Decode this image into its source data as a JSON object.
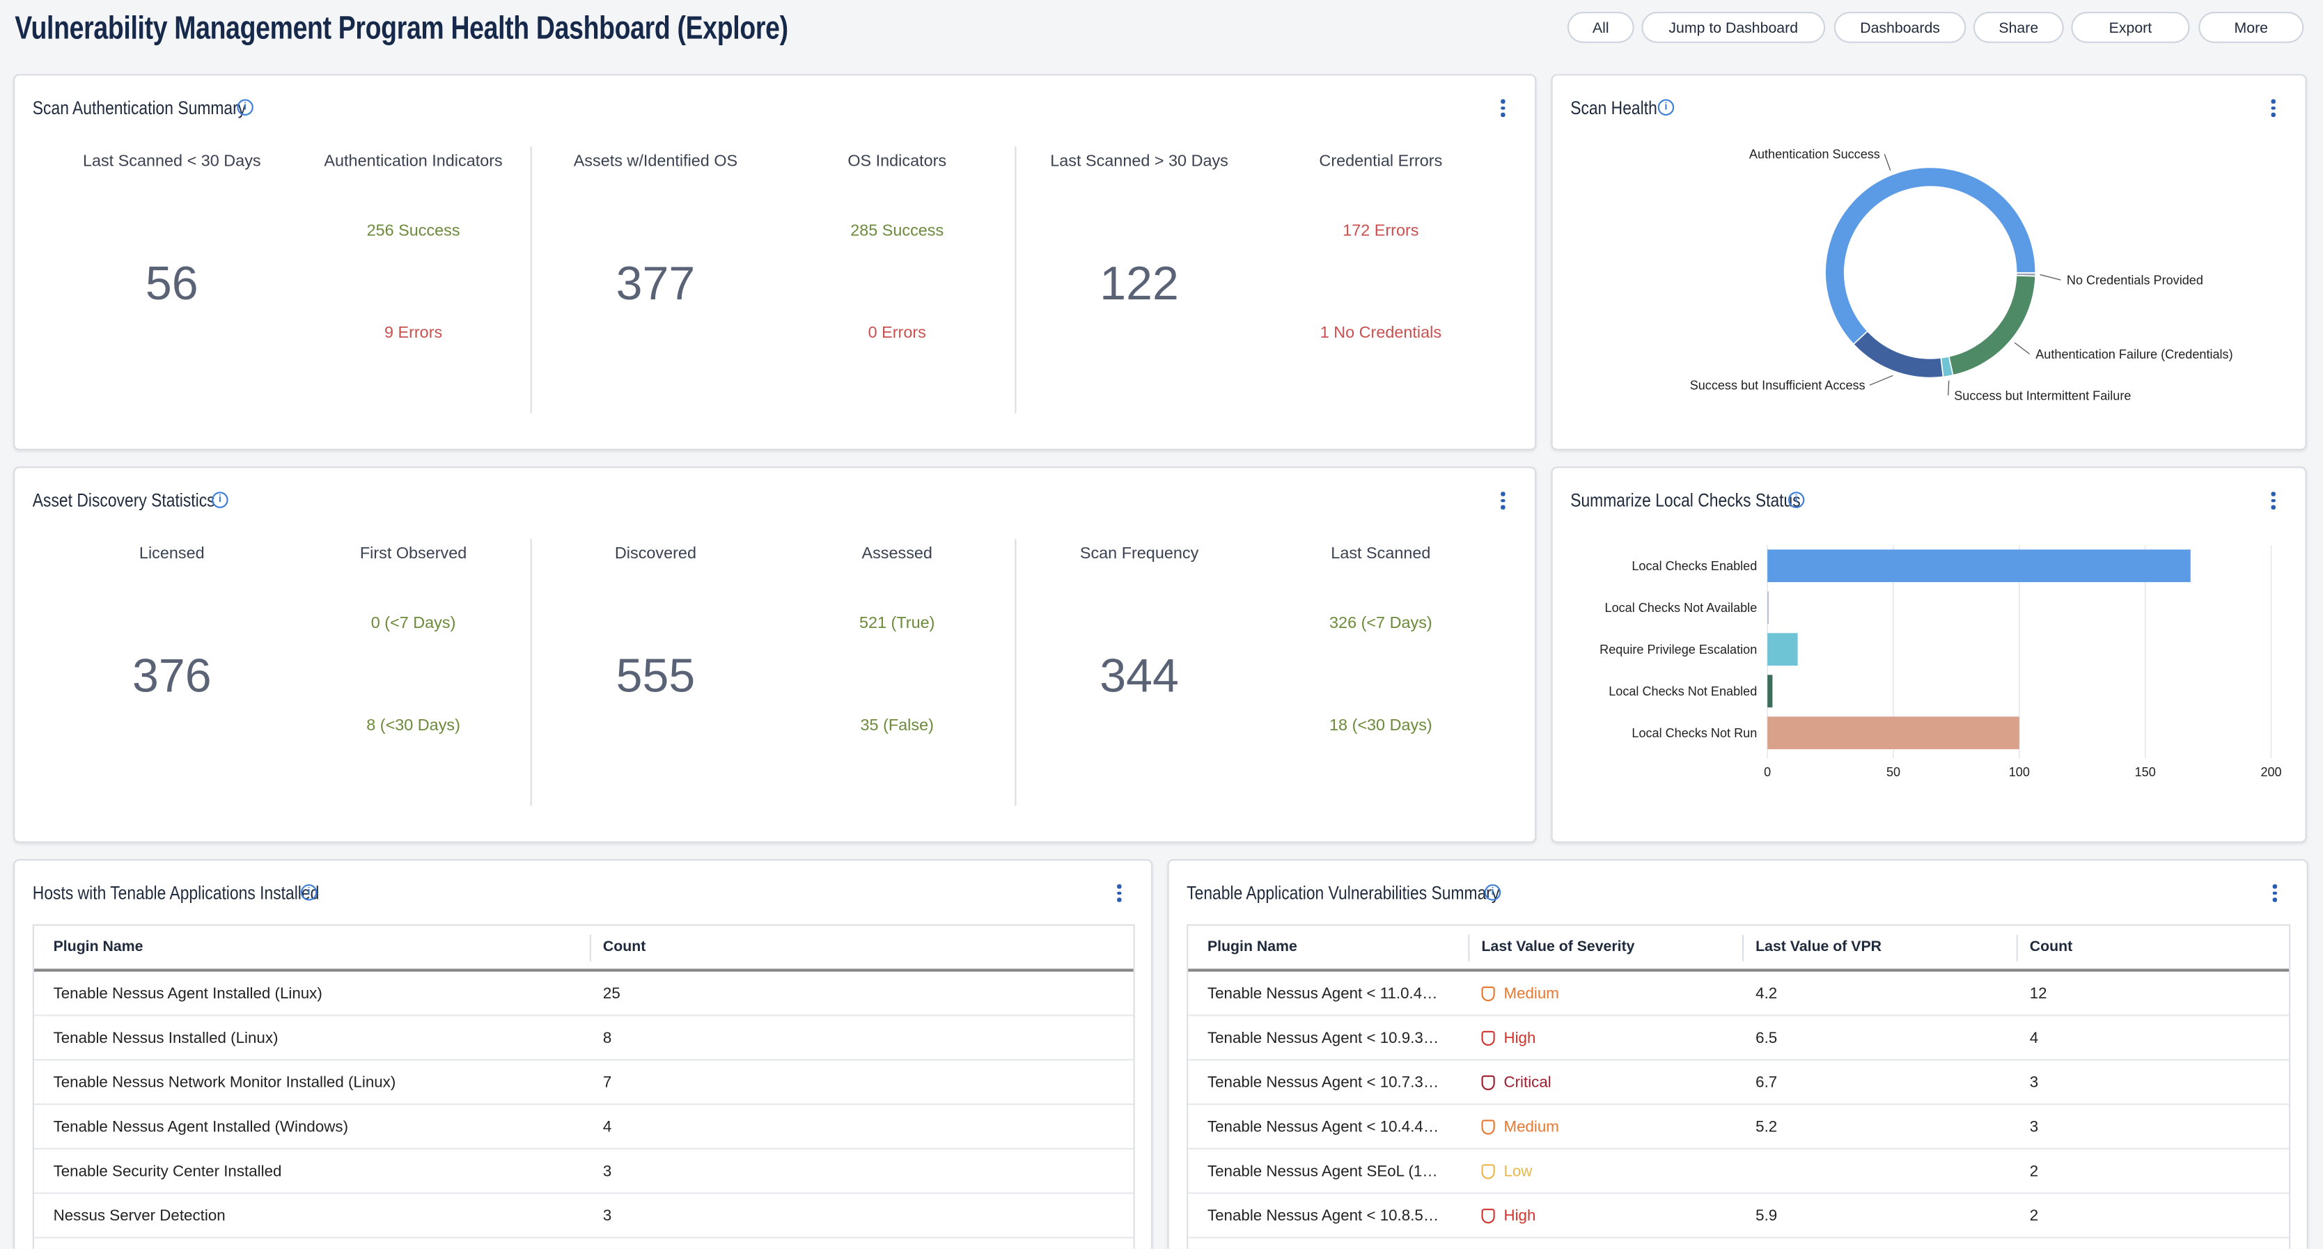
{
  "header": {
    "title": "Vulnerability Management Program Health Dashboard (Explore)",
    "buttons": [
      "All",
      "Jump to Dashboard",
      "Dashboards",
      "Share",
      "Export",
      "More"
    ]
  },
  "stat_panels": [
    {
      "title": "Scan Authentication Summary",
      "groups": [
        {
          "label": "Last Scanned < 30 Days",
          "value": "56",
          "detail_label": "Authentication Indicators",
          "top": "256 Success",
          "top_color": "#6b8a3a",
          "bottom": "9 Errors",
          "bottom_color": "#c9504f"
        },
        {
          "label": "Assets w/Identified OS",
          "value": "377",
          "detail_label": "OS Indicators",
          "top": "285 Success",
          "top_color": "#6b8a3a",
          "bottom": "0 Errors",
          "bottom_color": "#c9504f"
        },
        {
          "label": "Last Scanned > 30 Days",
          "value": "122",
          "detail_label": "Credential Errors",
          "top": "172 Errors",
          "top_color": "#c9504f",
          "bottom": "1 No Credentials",
          "bottom_color": "#c9504f"
        }
      ]
    },
    {
      "title": "Asset Discovery Statistics",
      "groups": [
        {
          "label": "Licensed",
          "value": "376",
          "detail_label": "First Observed",
          "top": "0 (<7 Days)",
          "top_color": "#6b8a3a",
          "bottom": "8 (<30 Days)",
          "bottom_color": "#6b8a3a"
        },
        {
          "label": "Discovered",
          "value": "555",
          "detail_label": "Assessed",
          "top": "521 (True)",
          "top_color": "#6b8a3a",
          "bottom": "35 (False)",
          "bottom_color": "#6b8a3a"
        },
        {
          "label": "Scan Frequency",
          "value": "344",
          "detail_label": "Last Scanned",
          "top": "326 (<7 Days)",
          "top_color": "#6b8a3a",
          "bottom": "18 (<30 Days)",
          "bottom_color": "#6b8a3a"
        }
      ]
    }
  ],
  "chart_data": [
    {
      "type": "pie",
      "title": "Scan Health",
      "donut": true,
      "categories": [
        "Authentication Success",
        "No Credentials Provided",
        "Authentication Failure (Credentials)",
        "Success but Intermittent Failure",
        "Success but Insufficient Access"
      ],
      "values": [
        62,
        0.5,
        21,
        1.5,
        15
      ],
      "colors": [
        "#5b9be6",
        "#9aa3b5",
        "#4f8a66",
        "#6ec3d4",
        "#3f629e"
      ]
    },
    {
      "type": "bar",
      "orientation": "horizontal",
      "title": "Summarize Local Checks Status",
      "categories": [
        "Local Checks Enabled",
        "Local Checks Not Available",
        "Require Privilege Escalation",
        "Local Checks Not Enabled",
        "Local Checks Not Run"
      ],
      "values": [
        168,
        0.5,
        12,
        2,
        100
      ],
      "colors": [
        "#5b9be6",
        "#b5bfd6",
        "#6ec3d4",
        "#3e6e5a",
        "#d9a08a"
      ],
      "xlim": [
        0,
        200
      ],
      "xticks": [
        0,
        50,
        100,
        150,
        200
      ],
      "grid": true
    }
  ],
  "tables": [
    {
      "title": "Hosts with Tenable Applications Installed",
      "columns": [
        "Plugin Name",
        "Count"
      ],
      "rows": [
        [
          "Tenable Nessus Agent Installed (Linux)",
          "25"
        ],
        [
          "Tenable Nessus Installed (Linux)",
          "8"
        ],
        [
          "Tenable Nessus Network Monitor Installed (Linux)",
          "7"
        ],
        [
          "Tenable Nessus Agent Installed (Windows)",
          "4"
        ],
        [
          "Tenable Security Center Installed",
          "3"
        ],
        [
          "Nessus Server Detection",
          "3"
        ]
      ]
    },
    {
      "title": "Tenable Application Vulnerabilities Summary",
      "columns": [
        "Plugin Name",
        "Last Value of Severity",
        "Last Value of VPR",
        "Count"
      ],
      "rows": [
        [
          "Tenable Nessus Agent < 11.0.4…",
          {
            "text": "Medium",
            "color": "#e8782f"
          },
          "4.2",
          "12"
        ],
        [
          "Tenable Nessus Agent < 10.9.3…",
          {
            "text": "High",
            "color": "#d0342c"
          },
          "6.5",
          "4"
        ],
        [
          "Tenable Nessus Agent < 10.7.3…",
          {
            "text": "Critical",
            "color": "#9c1c2e"
          },
          "6.7",
          "3"
        ],
        [
          "Tenable Nessus Agent < 10.4.4…",
          {
            "text": "Medium",
            "color": "#e8782f"
          },
          "5.2",
          "3"
        ],
        [
          "Tenable Nessus Agent SEoL (1…",
          {
            "text": "Low",
            "color": "#eab64a"
          },
          null,
          "2"
        ],
        [
          "Tenable Nessus Agent < 10.8.5…",
          {
            "text": "High",
            "color": "#d0342c"
          },
          "5.9",
          "2"
        ]
      ]
    }
  ]
}
